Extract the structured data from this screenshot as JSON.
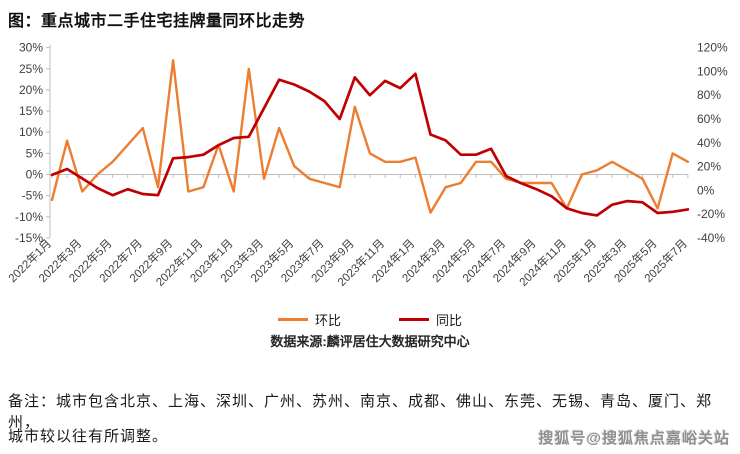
{
  "title": "图：重点城市二手住宅挂牌量同环比走势",
  "legend": [
    {
      "label": "环比",
      "color": "#ED7D31"
    },
    {
      "label": "同比",
      "color": "#C00000"
    }
  ],
  "source": "数据来源:麟评居住大数据研究中心",
  "note": {
    "line1": "备注：城市包含北京、上海、深圳、广州、苏州、南京、成都、佛山、东莞、无锡、青岛、厦门、郑州，",
    "line2": "城市较以往有所调整。"
  },
  "watermark": "搜狐号@搜狐焦点嘉峪关站",
  "colors": {
    "mom_line": "#ED7D31",
    "yoy_line": "#C00000",
    "axis_line": "#BFBFBF",
    "axis_text": "#404040"
  },
  "chart_data": {
    "type": "line",
    "x": [
      "2022年1月",
      "2022年2月",
      "2022年3月",
      "2022年4月",
      "2022年5月",
      "2022年6月",
      "2022年7月",
      "2022年8月",
      "2022年9月",
      "2022年10月",
      "2022年11月",
      "2022年12月",
      "2023年1月",
      "2023年2月",
      "2023年3月",
      "2023年4月",
      "2023年5月",
      "2023年6月",
      "2023年7月",
      "2023年8月",
      "2023年9月",
      "2023年10月",
      "2023年11月",
      "2023年12月",
      "2024年1月",
      "2024年2月",
      "2024年3月",
      "2024年4月",
      "2024年5月",
      "2024年6月",
      "2024年7月",
      "2024年8月",
      "2024年9月",
      "2024年10月",
      "2024年11月",
      "2024年12月",
      "2025年1月",
      "2025年2月",
      "2025年3月",
      "2025年4月",
      "2025年5月",
      "2025年6月",
      "2025年7月"
    ],
    "x_tick_every": 2,
    "x_tick_labels": [
      "2022年1月",
      "2022年3月",
      "2022年5月",
      "2022年7月",
      "2022年9月",
      "2022年11月",
      "2023年1月",
      "2023年3月",
      "2023年5月",
      "2023年7月",
      "2023年9月",
      "2023年11月",
      "2024年1月",
      "2024年3月",
      "2024年5月",
      "2024年7月",
      "2024年9月",
      "2024年11月",
      "2025年1月",
      "2025年3月",
      "2025年5月",
      "2025年7月"
    ],
    "series": [
      {
        "name": "环比",
        "axis": "left",
        "color": "#ED7D31",
        "values": [
          -6,
          8,
          -4,
          0,
          3,
          7,
          11,
          -3,
          27,
          -4,
          -3,
          7,
          -4,
          25,
          -1,
          11,
          2,
          -1,
          -2,
          -3,
          16,
          5,
          3,
          3,
          4,
          -9,
          -3,
          -2,
          3,
          3,
          -1,
          -2,
          -2,
          -2,
          -8,
          0,
          1,
          3,
          1,
          -1,
          -8,
          5,
          3
        ]
      },
      {
        "name": "同比",
        "axis": "right",
        "color": "#C00000",
        "values": [
          13,
          18,
          10,
          2,
          -4,
          1,
          -3,
          -4,
          27,
          28,
          30,
          38,
          44,
          45,
          69,
          93,
          89,
          83,
          75,
          60,
          95,
          80,
          92,
          86,
          98,
          47,
          42,
          30,
          30,
          35,
          12,
          6,
          1,
          -5,
          -15,
          -19,
          -21,
          -12,
          -9,
          -10,
          -19,
          -18,
          -16
        ]
      }
    ],
    "left_axis": {
      "min": -15,
      "max": 30,
      "step": 5,
      "tick_labels": [
        "30%",
        "25%",
        "20%",
        "15%",
        "10%",
        "5%",
        "0%",
        "-5%",
        "-10%",
        "-15%"
      ]
    },
    "right_axis": {
      "min": -40,
      "max": 120,
      "step": 20,
      "tick_labels": [
        "120%",
        "100%",
        "80%",
        "60%",
        "40%",
        "20%",
        "0%",
        "-20%",
        "-40%"
      ]
    },
    "grid": "zero-line-only",
    "legend_position": "bottom"
  }
}
